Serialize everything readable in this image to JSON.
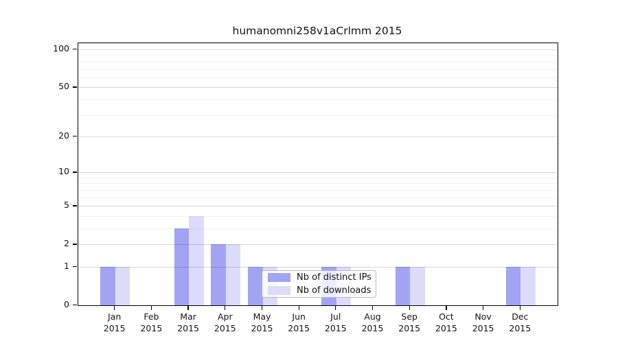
{
  "figure": {
    "title": "humanomni258v1aCrlmm 2015"
  },
  "chart_data": {
    "type": "bar",
    "title": "humanomni258v1aCrlmm 2015",
    "xlabel": "",
    "ylabel": "",
    "categories": [
      "Jan",
      "Feb",
      "Mar",
      "Apr",
      "May",
      "Jun",
      "Jul",
      "Aug",
      "Sep",
      "Oct",
      "Nov",
      "Dec"
    ],
    "x_tick_year": "2015",
    "series": [
      {
        "name": "Nb of distinct IPs",
        "color": "#a3a3f3",
        "values": [
          1,
          0,
          3,
          2,
          1,
          0,
          1,
          0,
          1,
          0,
          0,
          1
        ]
      },
      {
        "name": "Nb of downloads",
        "color": "#dcdcf9",
        "values": [
          1,
          0,
          4,
          2,
          1,
          0,
          1,
          0,
          1,
          0,
          0,
          1
        ]
      }
    ],
    "yscale": "log1p",
    "ylim": [
      0,
      100
    ],
    "y_major_ticks": [
      100,
      50,
      20,
      10,
      5,
      2,
      1,
      0
    ],
    "y_minor_gridlines": [
      3,
      4,
      6,
      7,
      8,
      9,
      30,
      40,
      60,
      70,
      80,
      90
    ],
    "grid": true,
    "legend_position": "lower center-left inside plot"
  }
}
